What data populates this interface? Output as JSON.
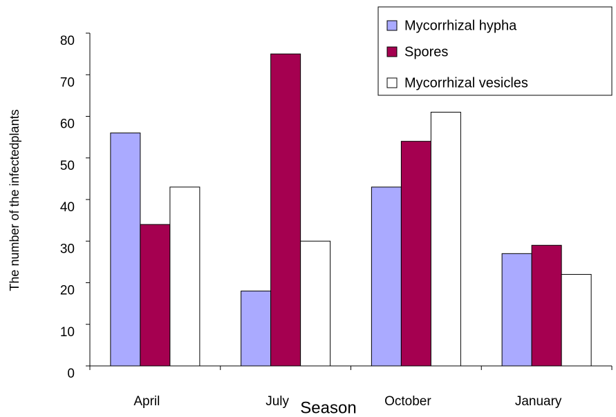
{
  "chart_data": {
    "type": "bar",
    "x_label": "Season",
    "y_label": "The number of the infectedplants",
    "categories": [
      "April",
      "July",
      "October",
      "January"
    ],
    "series": [
      {
        "name": "Mycorrhizal hypha",
        "color": "#aaaaff",
        "values": [
          56,
          18,
          43,
          27
        ]
      },
      {
        "name": "Spores",
        "color": "#a50050",
        "values": [
          34,
          75,
          54,
          29
        ]
      },
      {
        "name": "Mycorrhizal vesicles",
        "color": "#ffffff",
        "values": [
          43,
          30,
          61,
          22
        ]
      }
    ],
    "ylim": [
      0,
      80
    ],
    "yticks": [
      0,
      10,
      20,
      30,
      40,
      50,
      60,
      70,
      80
    ],
    "legend": "upper right"
  }
}
